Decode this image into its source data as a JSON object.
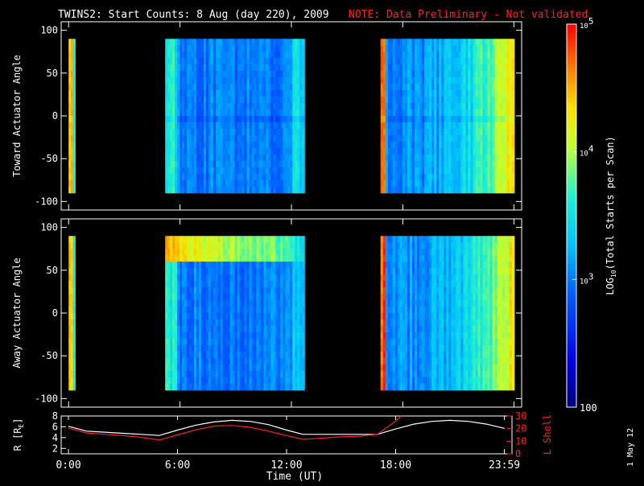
{
  "title": "TWINS2: Start Counts:  8 Aug (day 220), 2009",
  "note": "NOTE: Data Preliminary - Not validated",
  "date_stamp": "1 May 12",
  "colors": {
    "background": "#000000",
    "axes": "#ffffff",
    "note": "#ff2020",
    "lshell": "#ff2020"
  },
  "chart_data": [
    {
      "type": "heatmap",
      "panel": "toward",
      "ylabel": "Toward Actuator Angle",
      "ylim": [
        -110,
        110
      ],
      "yticks": [
        -100,
        -50,
        0,
        50,
        100
      ],
      "ytick_labels": [
        "-100",
        "-50",
        "0",
        "50",
        "100"
      ],
      "xlim_hours": [
        -0.4,
        24.4
      ],
      "x_ticks_hours": [
        0,
        6,
        12,
        18,
        23.983
      ],
      "angle_range": [
        -90,
        90
      ],
      "data_blocks_hours": [
        [
          0.0,
          0.35
        ],
        [
          5.2,
          12.7
        ],
        [
          16.8,
          24.0
        ]
      ],
      "log10_counts_typical": {
        "block1": 4.2,
        "block2": 3.0,
        "block3": 3.1,
        "block3_late": 3.8
      },
      "zero_line_log10": 2.9
    },
    {
      "type": "heatmap",
      "panel": "away",
      "ylabel": "Away Actuator Angle",
      "ylim": [
        -110,
        110
      ],
      "yticks": [
        -100,
        -50,
        0,
        50,
        100
      ],
      "ytick_labels": [
        "-100",
        "-50",
        "0",
        "50",
        "100"
      ],
      "xlim_hours": [
        -0.4,
        24.4
      ],
      "x_ticks_hours": [
        0,
        6,
        12,
        18,
        23.983
      ],
      "angle_range": [
        -90,
        90
      ],
      "data_blocks_hours": [
        [
          0.0,
          0.35
        ],
        [
          5.2,
          12.7
        ],
        [
          16.8,
          24.0
        ]
      ],
      "band_near_angle": 75,
      "log10_counts_typical": {
        "block1": 4.2,
        "block2": 3.0,
        "band": 4.4,
        "block3": 3.1,
        "block3_late": 3.8
      }
    },
    {
      "type": "line",
      "panel": "orbit",
      "ylabel": "R [RE]",
      "ylabel_parts": {
        "main": "R [R",
        "sub": "E",
        "end": "]"
      },
      "ylim": [
        1,
        8
      ],
      "yticks": [
        2,
        4,
        6,
        8
      ],
      "ytick_labels": [
        "2",
        "4",
        "6",
        "8"
      ],
      "y2label": "L Shell",
      "y2lim": [
        0,
        30
      ],
      "y2ticks": [
        0,
        10,
        20,
        30
      ],
      "y2tick_labels": [
        "0",
        "10",
        "20",
        "30"
      ],
      "xlabel": "Time (UT)",
      "xlim_hours": [
        -0.4,
        24.4
      ],
      "x_ticks_hours": [
        0,
        6,
        12,
        18,
        23.983
      ],
      "x_tick_labels": [
        "0:00",
        "6:00",
        "12:00",
        "18:00",
        "23:59"
      ],
      "series": [
        {
          "key": "r",
          "x": [
            0,
            1,
            2,
            3,
            4,
            5,
            6,
            7,
            8,
            9,
            10,
            11,
            12,
            12.9,
            14,
            15,
            16,
            17,
            18,
            19,
            20,
            21,
            22,
            23,
            24
          ],
          "y": [
            6.1,
            5.2,
            5.0,
            4.8,
            4.6,
            4.4,
            5.4,
            6.3,
            6.9,
            7.2,
            7.0,
            6.4,
            5.4,
            4.6,
            4.6,
            4.6,
            4.6,
            4.6,
            5.6,
            6.5,
            7.0,
            7.2,
            7.0,
            6.5,
            5.7
          ]
        },
        {
          "key": "lshell",
          "x": [
            0,
            1,
            2,
            3,
            4,
            5,
            6,
            7,
            8,
            9,
            10,
            11,
            12,
            12.9,
            14,
            15,
            16,
            17,
            18,
            18.3
          ],
          "y": [
            20.5,
            16.5,
            15.5,
            14.5,
            13.0,
            11.0,
            15.0,
            19.0,
            22.0,
            22.5,
            21.0,
            18.0,
            14.5,
            11.5,
            12.5,
            13.5,
            14.0,
            15.5,
            26.0,
            30.0
          ]
        }
      ]
    }
  ],
  "colorbar": {
    "label_parts": {
      "main": "LOG",
      "sub": "10",
      "end": "(Total Starts per Scan)"
    },
    "range_log10": [
      2,
      5
    ],
    "ticks_log10": [
      5,
      4,
      3,
      2
    ],
    "tick_labels": [
      {
        "base": "10",
        "exp": "5"
      },
      {
        "base": "10",
        "exp": "4"
      },
      {
        "base": "10",
        "exp": "3"
      },
      {
        "base": "100",
        "exp": ""
      }
    ]
  }
}
